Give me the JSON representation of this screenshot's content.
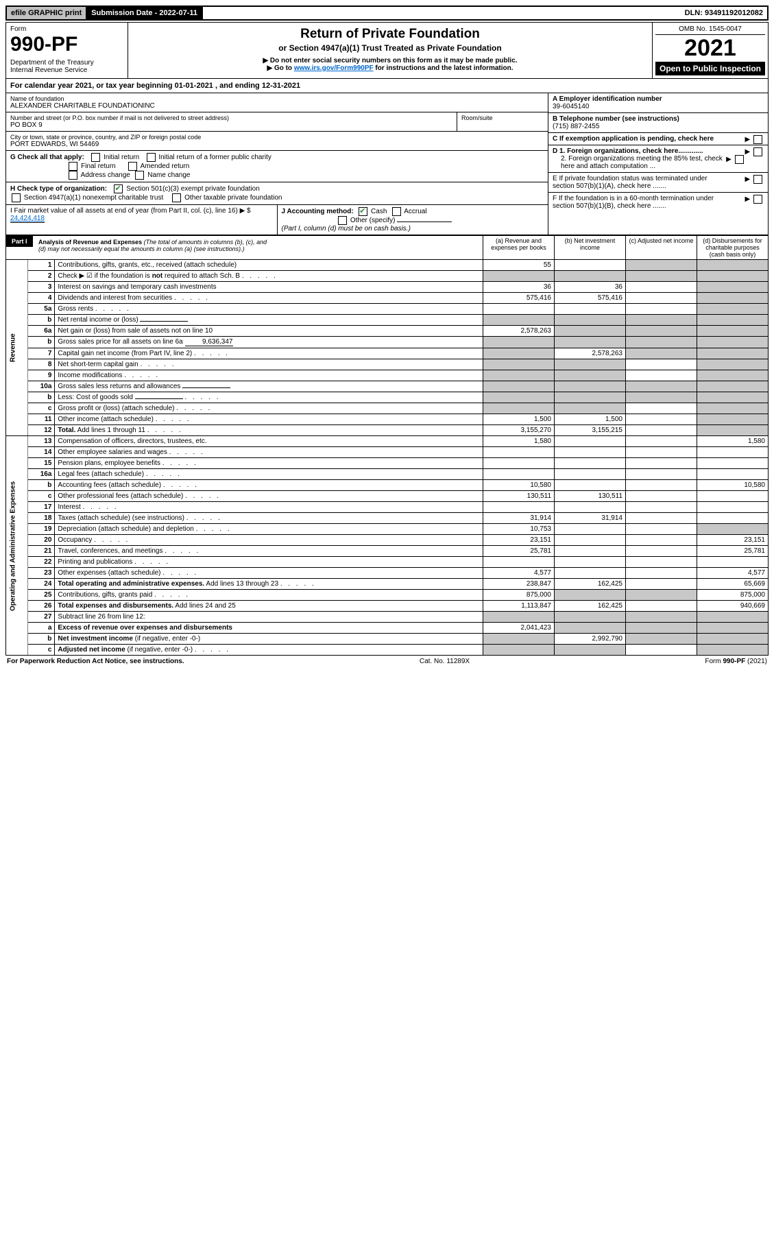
{
  "topbar": {
    "efile": "efile GRAPHIC print",
    "submission_label": "Submission Date - ",
    "submission_date": "2022-07-11",
    "dln_label": "DLN: ",
    "dln": "93491192012082"
  },
  "header": {
    "form_label": "Form",
    "form_number": "990-PF",
    "dept": "Department of the Treasury",
    "irs": "Internal Revenue Service",
    "title": "Return of Private Foundation",
    "subtitle": "or Section 4947(a)(1) Trust Treated as Private Foundation",
    "note1": "▶ Do not enter social security numbers on this form as it may be made public.",
    "note2_pre": "▶ Go to ",
    "note2_link": "www.irs.gov/Form990PF",
    "note2_post": " for instructions and the latest information.",
    "omb": "OMB No. 1545-0047",
    "year": "2021",
    "open": "Open to Public Inspection"
  },
  "cal_year": {
    "text_pre": "For calendar year 2021, or tax year beginning ",
    "begin": "01-01-2021",
    "text_mid": " , and ending ",
    "end": "12-31-2021"
  },
  "entity": {
    "name_label": "Name of foundation",
    "name": "ALEXANDER CHARITABLE FOUNDATIONINC",
    "addr_label": "Number and street (or P.O. box number if mail is not delivered to street address)",
    "addr": "PO BOX 9",
    "room_label": "Room/suite",
    "city_label": "City or town, state or province, country, and ZIP or foreign postal code",
    "city": "PORT EDWARDS, WI  54469"
  },
  "right_info": {
    "a_label": "A Employer identification number",
    "a_val": "39-6045140",
    "b_label": "B Telephone number (see instructions)",
    "b_val": "(715) 887-2455",
    "c_label": "C If exemption application is pending, check here",
    "d1": "D 1. Foreign organizations, check here.............",
    "d2": "2. Foreign organizations meeting the 85% test, check here and attach computation ...",
    "e": "E  If private foundation status was terminated under section 507(b)(1)(A), check here .......",
    "f": "F  If the foundation is in a 60-month termination under section 507(b)(1)(B), check here ......."
  },
  "g": {
    "label": "G Check all that apply:",
    "opts": [
      "Initial return",
      "Initial return of a former public charity",
      "Final return",
      "Amended return",
      "Address change",
      "Name change"
    ]
  },
  "h": {
    "label": "H Check type of organization:",
    "opt1": "Section 501(c)(3) exempt private foundation",
    "opt2": "Section 4947(a)(1) nonexempt charitable trust",
    "opt3": "Other taxable private foundation"
  },
  "i": {
    "label": "I Fair market value of all assets at end of year (from Part II, col. (c), line 16) ▶ $",
    "val": "24,424,418"
  },
  "j": {
    "label": "J Accounting method:",
    "cash": "Cash",
    "accrual": "Accrual",
    "other": "Other (specify)",
    "note": "(Part I, column (d) must be on cash basis.)"
  },
  "part1": {
    "label": "Part I",
    "title": "Analysis of Revenue and Expenses",
    "note": " (The total of amounts in columns (b), (c), and (d) may not necessarily equal the amounts in column (a) (see instructions).)",
    "col_a": "(a)  Revenue and expenses per books",
    "col_b": "(b)  Net investment income",
    "col_c": "(c)  Adjusted net income",
    "col_d": "(d)  Disbursements for charitable purposes (cash basis only)"
  },
  "side": {
    "revenue": "Revenue",
    "expenses": "Operating and Administrative Expenses"
  },
  "rows": [
    {
      "n": "1",
      "d": "Contributions, gifts, grants, etc., received (attach schedule)",
      "a": "55",
      "b": "",
      "c": "sh",
      "dd": "sh"
    },
    {
      "n": "2",
      "d": "Check ▶ ☑ if the foundation is <b>not</b> required to attach Sch. B",
      "a": "sh",
      "b": "sh",
      "c": "sh",
      "dd": "sh",
      "dots": true
    },
    {
      "n": "3",
      "d": "Interest on savings and temporary cash investments",
      "a": "36",
      "b": "36",
      "c": "",
      "dd": "sh"
    },
    {
      "n": "4",
      "d": "Dividends and interest from securities",
      "a": "575,416",
      "b": "575,416",
      "c": "",
      "dd": "sh",
      "dots": true
    },
    {
      "n": "5a",
      "d": "Gross rents",
      "a": "",
      "b": "",
      "c": "",
      "dd": "sh",
      "dots": true
    },
    {
      "n": "b",
      "d": "Net rental income or (loss)",
      "a": "sh",
      "b": "sh",
      "c": "sh",
      "dd": "sh",
      "inline": ""
    },
    {
      "n": "6a",
      "d": "Net gain or (loss) from sale of assets not on line 10",
      "a": "2,578,263",
      "b": "sh",
      "c": "sh",
      "dd": "sh"
    },
    {
      "n": "b",
      "d": "Gross sales price for all assets on line 6a",
      "a": "sh",
      "b": "sh",
      "c": "sh",
      "dd": "sh",
      "inline": "9,636,347"
    },
    {
      "n": "7",
      "d": "Capital gain net income (from Part IV, line 2)",
      "a": "sh",
      "b": "2,578,263",
      "c": "sh",
      "dd": "sh",
      "dots": true
    },
    {
      "n": "8",
      "d": "Net short-term capital gain",
      "a": "sh",
      "b": "sh",
      "c": "",
      "dd": "sh",
      "dots": true
    },
    {
      "n": "9",
      "d": "Income modifications",
      "a": "sh",
      "b": "sh",
      "c": "",
      "dd": "sh",
      "dots": true
    },
    {
      "n": "10a",
      "d": "Gross sales less returns and allowances",
      "a": "sh",
      "b": "sh",
      "c": "sh",
      "dd": "sh",
      "inline": ""
    },
    {
      "n": "b",
      "d": "Less: Cost of goods sold",
      "a": "sh",
      "b": "sh",
      "c": "sh",
      "dd": "sh",
      "inline": "",
      "dots": true
    },
    {
      "n": "c",
      "d": "Gross profit or (loss) (attach schedule)",
      "a": "sh",
      "b": "sh",
      "c": "",
      "dd": "sh",
      "dots": true
    },
    {
      "n": "11",
      "d": "Other income (attach schedule)",
      "a": "1,500",
      "b": "1,500",
      "c": "",
      "dd": "sh",
      "dots": true
    },
    {
      "n": "12",
      "d": "<b>Total.</b> Add lines 1 through 11",
      "a": "3,155,270",
      "b": "3,155,215",
      "c": "",
      "dd": "sh",
      "dots": true
    }
  ],
  "exp_rows": [
    {
      "n": "13",
      "d": "Compensation of officers, directors, trustees, etc.",
      "a": "1,580",
      "b": "",
      "c": "",
      "dd": "1,580"
    },
    {
      "n": "14",
      "d": "Other employee salaries and wages",
      "a": "",
      "b": "",
      "c": "",
      "dd": "",
      "dots": true
    },
    {
      "n": "15",
      "d": "Pension plans, employee benefits",
      "a": "",
      "b": "",
      "c": "",
      "dd": "",
      "dots": true
    },
    {
      "n": "16a",
      "d": "Legal fees (attach schedule)",
      "a": "",
      "b": "",
      "c": "",
      "dd": "",
      "dots": true
    },
    {
      "n": "b",
      "d": "Accounting fees (attach schedule)",
      "a": "10,580",
      "b": "",
      "c": "",
      "dd": "10,580",
      "dots": true
    },
    {
      "n": "c",
      "d": "Other professional fees (attach schedule)",
      "a": "130,511",
      "b": "130,511",
      "c": "",
      "dd": "",
      "dots": true
    },
    {
      "n": "17",
      "d": "Interest",
      "a": "",
      "b": "",
      "c": "",
      "dd": "",
      "dots": true
    },
    {
      "n": "18",
      "d": "Taxes (attach schedule) (see instructions)",
      "a": "31,914",
      "b": "31,914",
      "c": "",
      "dd": "",
      "dots": true
    },
    {
      "n": "19",
      "d": "Depreciation (attach schedule) and depletion",
      "a": "10,753",
      "b": "",
      "c": "",
      "dd": "sh",
      "dots": true
    },
    {
      "n": "20",
      "d": "Occupancy",
      "a": "23,151",
      "b": "",
      "c": "",
      "dd": "23,151",
      "dots": true
    },
    {
      "n": "21",
      "d": "Travel, conferences, and meetings",
      "a": "25,781",
      "b": "",
      "c": "",
      "dd": "25,781",
      "dots": true
    },
    {
      "n": "22",
      "d": "Printing and publications",
      "a": "",
      "b": "",
      "c": "",
      "dd": "",
      "dots": true
    },
    {
      "n": "23",
      "d": "Other expenses (attach schedule)",
      "a": "4,577",
      "b": "",
      "c": "",
      "dd": "4,577",
      "dots": true
    },
    {
      "n": "24",
      "d": "<b>Total operating and administrative expenses.</b> Add lines 13 through 23",
      "a": "238,847",
      "b": "162,425",
      "c": "",
      "dd": "65,669",
      "dots": true
    },
    {
      "n": "25",
      "d": "Contributions, gifts, grants paid",
      "a": "875,000",
      "b": "sh",
      "c": "sh",
      "dd": "875,000",
      "dots": true
    },
    {
      "n": "26",
      "d": "<b>Total expenses and disbursements.</b> Add lines 24 and 25",
      "a": "1,113,847",
      "b": "162,425",
      "c": "",
      "dd": "940,669"
    },
    {
      "n": "27",
      "d": "Subtract line 26 from line 12:",
      "a": "sh",
      "b": "sh",
      "c": "sh",
      "dd": "sh"
    },
    {
      "n": "a",
      "d": "<b>Excess of revenue over expenses and disbursements</b>",
      "a": "2,041,423",
      "b": "sh",
      "c": "sh",
      "dd": "sh"
    },
    {
      "n": "b",
      "d": "<b>Net investment income</b> (if negative, enter -0-)",
      "a": "sh",
      "b": "2,992,790",
      "c": "sh",
      "dd": "sh"
    },
    {
      "n": "c",
      "d": "<b>Adjusted net income</b> (if negative, enter -0-)",
      "a": "sh",
      "b": "sh",
      "c": "",
      "dd": "sh",
      "dots": true
    }
  ],
  "footer": {
    "left": "For Paperwork Reduction Act Notice, see instructions.",
    "mid": "Cat. No. 11289X",
    "right": "Form 990-PF (2021)"
  },
  "colors": {
    "link": "#0066cc",
    "check": "#2a8a3a",
    "shade": "#c8c8c8",
    "header_btn": "#c0c0c0"
  }
}
